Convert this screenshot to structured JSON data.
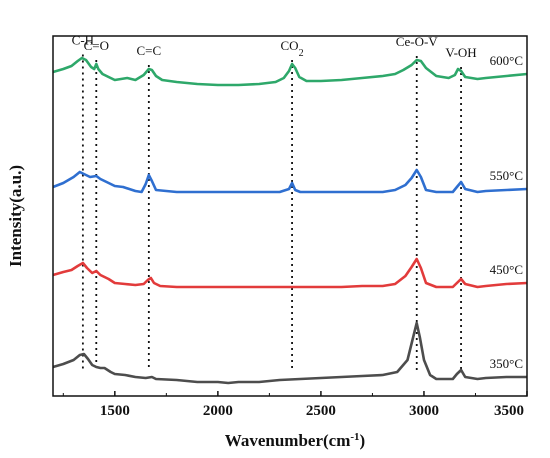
{
  "chart_data": {
    "type": "line",
    "xlabel": "Wavenumber(cm",
    "xlabel_sup": "-1",
    "xlabel_close": ")",
    "ylabel": "Intensity(a.u.)",
    "xlim": [
      1200,
      3500
    ],
    "x_ticks": [
      "1500",
      "2000",
      "2500",
      "3000",
      "3500"
    ],
    "y_ticks": [],
    "grid": false,
    "series": [
      {
        "name": "600°C",
        "color": "#2ea86a",
        "offset": 295,
        "points": [
          [
            1200,
            -2
          ],
          [
            1250,
            1
          ],
          [
            1290,
            4
          ],
          [
            1320,
            9
          ],
          [
            1340,
            12
          ],
          [
            1360,
            10
          ],
          [
            1385,
            3
          ],
          [
            1400,
            1
          ],
          [
            1410,
            6
          ],
          [
            1420,
            1
          ],
          [
            1440,
            -4
          ],
          [
            1470,
            -7
          ],
          [
            1500,
            -10
          ],
          [
            1530,
            -9
          ],
          [
            1560,
            -8
          ],
          [
            1600,
            -10
          ],
          [
            1640,
            -5
          ],
          [
            1665,
            1
          ],
          [
            1680,
            0
          ],
          [
            1700,
            -6
          ],
          [
            1730,
            -10
          ],
          [
            1800,
            -12
          ],
          [
            1900,
            -14
          ],
          [
            2000,
            -15
          ],
          [
            2100,
            -15
          ],
          [
            2200,
            -14
          ],
          [
            2280,
            -12
          ],
          [
            2320,
            -8
          ],
          [
            2345,
            -1
          ],
          [
            2360,
            6
          ],
          [
            2375,
            2
          ],
          [
            2395,
            -7
          ],
          [
            2430,
            -11
          ],
          [
            2500,
            -11
          ],
          [
            2600,
            -10
          ],
          [
            2700,
            -8
          ],
          [
            2800,
            -6
          ],
          [
            2860,
            -4
          ],
          [
            2900,
            0
          ],
          [
            2940,
            5
          ],
          [
            2965,
            10
          ],
          [
            2985,
            9
          ],
          [
            3010,
            2
          ],
          [
            3060,
            -6
          ],
          [
            3120,
            -8
          ],
          [
            3150,
            -5
          ],
          [
            3165,
            1
          ],
          [
            3180,
            -1
          ],
          [
            3200,
            -7
          ],
          [
            3260,
            -9
          ],
          [
            3300,
            -8
          ],
          [
            3400,
            -6
          ],
          [
            3500,
            -4
          ]
        ]
      },
      {
        "name": "550°C",
        "color": "#2f6fd0",
        "offset": 185,
        "points": [
          [
            1200,
            -7
          ],
          [
            1250,
            -3
          ],
          [
            1300,
            3
          ],
          [
            1330,
            8
          ],
          [
            1350,
            6
          ],
          [
            1380,
            3
          ],
          [
            1410,
            4
          ],
          [
            1430,
            1
          ],
          [
            1460,
            -2
          ],
          [
            1500,
            -6
          ],
          [
            1540,
            -7
          ],
          [
            1600,
            -11
          ],
          [
            1630,
            -12
          ],
          [
            1650,
            -4
          ],
          [
            1665,
            5
          ],
          [
            1680,
            -1
          ],
          [
            1700,
            -10
          ],
          [
            1750,
            -11
          ],
          [
            1800,
            -12
          ],
          [
            1900,
            -12
          ],
          [
            2000,
            -12
          ],
          [
            2100,
            -12
          ],
          [
            2200,
            -12
          ],
          [
            2300,
            -12
          ],
          [
            2345,
            -9
          ],
          [
            2360,
            -3
          ],
          [
            2375,
            -10
          ],
          [
            2400,
            -12
          ],
          [
            2500,
            -12
          ],
          [
            2600,
            -12
          ],
          [
            2700,
            -12
          ],
          [
            2800,
            -12
          ],
          [
            2860,
            -10
          ],
          [
            2910,
            -5
          ],
          [
            2940,
            2
          ],
          [
            2965,
            10
          ],
          [
            2985,
            3
          ],
          [
            3010,
            -10
          ],
          [
            3060,
            -12
          ],
          [
            3140,
            -12
          ],
          [
            3160,
            -7
          ],
          [
            3180,
            -2
          ],
          [
            3200,
            -9
          ],
          [
            3260,
            -12
          ],
          [
            3300,
            -11
          ],
          [
            3400,
            -10
          ],
          [
            3500,
            -9
          ]
        ]
      },
      {
        "name": "450°C",
        "color": "#e23b3b",
        "offset": 92,
        "points": [
          [
            1200,
            -2
          ],
          [
            1250,
            1
          ],
          [
            1290,
            3
          ],
          [
            1320,
            7
          ],
          [
            1345,
            10
          ],
          [
            1365,
            5
          ],
          [
            1390,
            0
          ],
          [
            1410,
            2
          ],
          [
            1430,
            -2
          ],
          [
            1470,
            -6
          ],
          [
            1500,
            -10
          ],
          [
            1550,
            -11
          ],
          [
            1600,
            -12
          ],
          [
            1640,
            -11
          ],
          [
            1660,
            -7
          ],
          [
            1675,
            -5
          ],
          [
            1690,
            -10
          ],
          [
            1720,
            -13
          ],
          [
            1800,
            -14
          ],
          [
            1900,
            -14
          ],
          [
            2000,
            -14
          ],
          [
            2100,
            -14
          ],
          [
            2200,
            -14
          ],
          [
            2300,
            -14
          ],
          [
            2400,
            -14
          ],
          [
            2500,
            -14
          ],
          [
            2600,
            -14
          ],
          [
            2700,
            -13
          ],
          [
            2800,
            -13
          ],
          [
            2860,
            -11
          ],
          [
            2910,
            -3
          ],
          [
            2940,
            6
          ],
          [
            2965,
            14
          ],
          [
            2985,
            5
          ],
          [
            3010,
            -10
          ],
          [
            3060,
            -14
          ],
          [
            3140,
            -14
          ],
          [
            3160,
            -10
          ],
          [
            3180,
            -6
          ],
          [
            3200,
            -11
          ],
          [
            3260,
            -14
          ],
          [
            3300,
            -13
          ],
          [
            3400,
            -11
          ],
          [
            3500,
            -10
          ]
        ]
      },
      {
        "name": "350°C",
        "color": "#4d4d4d",
        "offset": 0,
        "points": [
          [
            1200,
            -2
          ],
          [
            1250,
            1
          ],
          [
            1300,
            5
          ],
          [
            1330,
            10
          ],
          [
            1350,
            11
          ],
          [
            1370,
            6
          ],
          [
            1390,
            0
          ],
          [
            1410,
            -2
          ],
          [
            1430,
            -3
          ],
          [
            1450,
            -3
          ],
          [
            1480,
            -7
          ],
          [
            1500,
            -9
          ],
          [
            1550,
            -10
          ],
          [
            1600,
            -12
          ],
          [
            1650,
            -13
          ],
          [
            1680,
            -12
          ],
          [
            1700,
            -14
          ],
          [
            1800,
            -15
          ],
          [
            1900,
            -17
          ],
          [
            2000,
            -17
          ],
          [
            2050,
            -18
          ],
          [
            2100,
            -17
          ],
          [
            2200,
            -17
          ],
          [
            2300,
            -15
          ],
          [
            2400,
            -14
          ],
          [
            2500,
            -13
          ],
          [
            2600,
            -12
          ],
          [
            2700,
            -11
          ],
          [
            2800,
            -10
          ],
          [
            2870,
            -7
          ],
          [
            2920,
            5
          ],
          [
            2950,
            30
          ],
          [
            2965,
            42
          ],
          [
            2980,
            28
          ],
          [
            3000,
            5
          ],
          [
            3030,
            -10
          ],
          [
            3060,
            -14
          ],
          [
            3140,
            -14
          ],
          [
            3160,
            -9
          ],
          [
            3180,
            -5
          ],
          [
            3200,
            -12
          ],
          [
            3260,
            -14
          ],
          [
            3300,
            -13
          ],
          [
            3400,
            -12
          ],
          [
            3500,
            -12
          ]
        ]
      }
    ],
    "annotations": [
      {
        "label": "C-H",
        "sub": "",
        "x": 1345
      },
      {
        "label": "C=O",
        "sub": "",
        "x": 1410
      },
      {
        "label": "C=C",
        "sub": "",
        "x": 1665
      },
      {
        "label": "CO",
        "sub": "2",
        "x": 2360
      },
      {
        "label": "Ce-O-V",
        "sub": "",
        "x": 2965
      },
      {
        "label": "V-OH",
        "sub": "",
        "x": 3180
      }
    ]
  }
}
